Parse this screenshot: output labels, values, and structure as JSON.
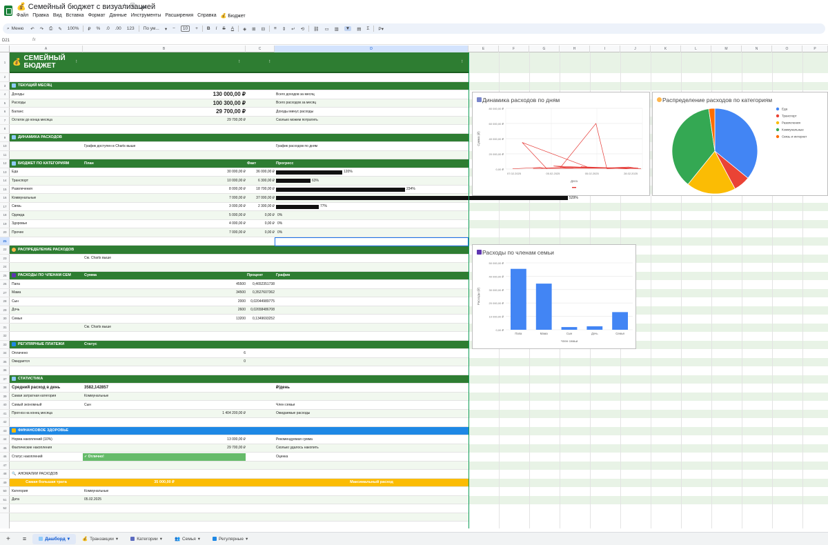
{
  "window": {
    "title": "Семейный бюджет с визуализацией"
  },
  "menu": [
    "Файл",
    "Правка",
    "Вид",
    "Вставка",
    "Формат",
    "Данные",
    "Инструменты",
    "Расширения",
    "Справка",
    "Бюджет"
  ],
  "toolbar": {
    "search": "Меню",
    "zoom": "100%",
    "currency": "₽",
    "percent": "%",
    "dec_less": ".0",
    "dec_more": ".00",
    "format_123": "123",
    "font": "По ум...",
    "font_size": "10"
  },
  "formula": {
    "cell_ref": "D21",
    "fx": "fx"
  },
  "columns": [
    "A",
    "B",
    "C",
    "D",
    "E",
    "F",
    "G",
    "H",
    "I",
    "J",
    "K",
    "L",
    "M",
    "N",
    "O",
    "P"
  ],
  "rows": [
    "1",
    "2",
    "3",
    "4",
    "5",
    "6",
    "7",
    "8",
    "9",
    "10",
    "11",
    "12",
    "13",
    "14",
    "15",
    "16",
    "17",
    "18",
    "19",
    "20",
    "21",
    "22",
    "23",
    "24",
    "25",
    "26",
    "27",
    "28",
    "29",
    "30",
    "31",
    "32",
    "33",
    "34",
    "35",
    "36",
    "37",
    "38",
    "39",
    "40",
    "41",
    "42",
    "43",
    "44",
    "45",
    "46",
    "47",
    "48",
    "49",
    "50",
    "51",
    "52"
  ],
  "header": {
    "title_line1": "СЕМЕЙНЫЙ",
    "title_line2": "БЮДЖЕТ"
  },
  "current_month": {
    "title": "ТЕКУЩИЙ МЕСЯЦ",
    "rows": [
      {
        "label": "Доходы",
        "value": "130 000,00 ₽",
        "note": "Всего доходов за месяц"
      },
      {
        "label": "Расходы",
        "value": "100 300,00 ₽",
        "note": "Всего расходов за месяц"
      },
      {
        "label": "Баланс",
        "value": "29 700,00 ₽",
        "note": "Доходы минус расходы"
      }
    ],
    "remaining": {
      "label": "Остаток до конца месяца",
      "value": "29 700,00 ₽",
      "note": "Сколько можем потратить"
    }
  },
  "dynamics": {
    "title": "ДИНАМИКА РАСХОДОВ",
    "b": "График доступен в Charts выше",
    "d": "График расходов по дням"
  },
  "budget": {
    "title": "БЮДЖЕТ ПО КАТЕГОРИЯМ",
    "h_plan": "План",
    "h_fact": "Факт",
    "h_progress": "Прогресс",
    "items": [
      {
        "cat": "Еда",
        "plan": "30 000,00 ₽",
        "fact": "36 000,00 ₽",
        "pct": "120%",
        "ratio": 1.2
      },
      {
        "cat": "Транспорт",
        "plan": "10 000,00 ₽",
        "fact": "6 300,00 ₽",
        "pct": "63%",
        "ratio": 0.63
      },
      {
        "cat": "Развлечения",
        "plan": "8 000,00 ₽",
        "fact": "18 700,00 ₽",
        "pct": "234%",
        "ratio": 2.34
      },
      {
        "cat": "Коммунальные",
        "plan": "7 000,00 ₽",
        "fact": "37 000,00 ₽",
        "pct": "529%",
        "ratio": 5.29
      },
      {
        "cat": "Связь",
        "plan": "3 000,00 ₽",
        "fact": "2 300,00 ₽",
        "pct": "77%",
        "ratio": 0.77
      },
      {
        "cat": "Одежда",
        "plan": "5 000,00 ₽",
        "fact": "0,00 ₽",
        "pct": "0%",
        "ratio": 0
      },
      {
        "cat": "Здоровье",
        "plan": "4 000,00 ₽",
        "fact": "0,00 ₽",
        "pct": "0%",
        "ratio": 0
      },
      {
        "cat": "Прочее",
        "plan": "7 000,00 ₽",
        "fact": "0,00 ₽",
        "pct": "0%",
        "ratio": 0
      }
    ]
  },
  "distribution": {
    "title": "РАСПРЕДЕЛЕНИЕ РАСХОДОВ",
    "b": "См. Charts выше"
  },
  "members": {
    "title": "РАСХОДЫ ПО ЧЛЕНАМ СЕМ",
    "h_sum": "Сумма",
    "h_pct": "Процент",
    "h_chart": "График",
    "items": [
      {
        "name": "Папа",
        "sum": "45500",
        "pct": "0,4652351738"
      },
      {
        "name": "Мама",
        "sum": "34500",
        "pct": "0,3527607362"
      },
      {
        "name": "Сын",
        "sum": "2000",
        "pct": "0,02044989775"
      },
      {
        "name": "Дочь",
        "sum": "2600",
        "pct": "0,02658486708"
      },
      {
        "name": "Семья",
        "sum": "13200",
        "pct": "0,1349693252"
      }
    ],
    "footer": "См. Charts выше"
  },
  "regular": {
    "title": "РЕГУЛЯРНЫЕ ПЛАТЕЖИ",
    "h_status": "Статус",
    "paid_label": "Оплачено",
    "paid": "6",
    "pending_label": "Ожидается",
    "pending": "0"
  },
  "stats": {
    "title": "СТАТИСТИКА",
    "avg_label": "Средний расход в день",
    "avg_value": "3582,142857",
    "avg_unit": "₽/день",
    "top_label": "Самая затратная категория",
    "top_value": "Коммунальные",
    "eco_label": "Самый экономный",
    "eco_value": "Сын",
    "eco_note": "Член семьи",
    "fc_label": "Прогноз на конец месяца",
    "fc_value": "1 404 200,00 ₽",
    "fc_note": "Ожидаемые расходы"
  },
  "health": {
    "title": "ФИНАНСОВОЕ ЗДОРОВЬЕ",
    "norm_label": "Норма накоплений (10%)",
    "norm_value": "13 000,00 ₽",
    "norm_note": "Рекомендуемая сумма",
    "fact_label": "Фактические накопления",
    "fact_value": "29 700,00 ₽",
    "fact_note": "Сколько удалось накопить",
    "status_label": "Статус накоплений",
    "status_value": "✓ Отлично!",
    "status_note": "Оценка"
  },
  "anomalies": {
    "title": "АНОМАЛИИ РАСХОДОВ",
    "largest": "Самая большая трата",
    "amount": "35 000,00 ₽",
    "max": "Максимальный расход",
    "cat_label": "Категория",
    "cat_value": "Коммунальные",
    "date_label": "Дата",
    "date_value": "05.02.2025"
  },
  "tabs": [
    "Дашборд",
    "Транзакции",
    "Категории",
    "Семья",
    "Регулярные"
  ],
  "colors": {
    "green": "#2e7d32",
    "blue": "#1e88e5",
    "yellow": "#fbbc04",
    "light": "#e8f3e6"
  },
  "chart_data": [
    {
      "type": "line",
      "title": "Динамика расходов по дням",
      "xlabel": "Дата",
      "ylabel": "Сумма (₽)",
      "ylim": [
        0,
        80000
      ],
      "y_ticks": [
        "80 000,00 ₽",
        "60 000,00 ₽",
        "40 000,00 ₽",
        "20 000,00 ₽",
        "0,00 ₽"
      ],
      "x_ticks": [
        "07.02.2025",
        "05.02.2025",
        "05.02.2025",
        "28.02.2025"
      ],
      "series": [
        {
          "values": [
            300,
            1200,
            2100,
            500,
            35000,
            2500,
            1800,
            900,
            4000,
            1500,
            1100,
            2600,
            1200,
            900,
            1700,
            2000,
            60000,
            500,
            1200,
            800,
            2200,
            1500,
            400,
            3000,
            1200,
            500
          ]
        }
      ]
    },
    {
      "type": "pie",
      "title": "Распределение расходов по категориям",
      "legend": [
        "Еда",
        "Транспорт",
        "Развлечения",
        "Коммунальные",
        "Связь и интернет"
      ],
      "colors": [
        "#4285f4",
        "#ea4335",
        "#fbbc04",
        "#34a853",
        "#ff6d01"
      ],
      "values": [
        36000,
        6300,
        18700,
        37000,
        2300
      ]
    },
    {
      "type": "bar",
      "title": "Расходы по членам семьи",
      "xlabel": "Член семьи",
      "ylabel": "Расходы (₽)",
      "categories": [
        "Папа",
        "Мама",
        "Сын",
        "Дочь",
        "Семья"
      ],
      "values": [
        45500,
        34500,
        2000,
        2600,
        13200
      ],
      "ylim": [
        0,
        50000
      ],
      "y_ticks": [
        "50 000,00 ₽",
        "40 000,00 ₽",
        "30 000,00 ₽",
        "20 000,00 ₽",
        "10 000,00 ₽",
        "0,00 ₽"
      ],
      "color": "#4285f4"
    }
  ]
}
